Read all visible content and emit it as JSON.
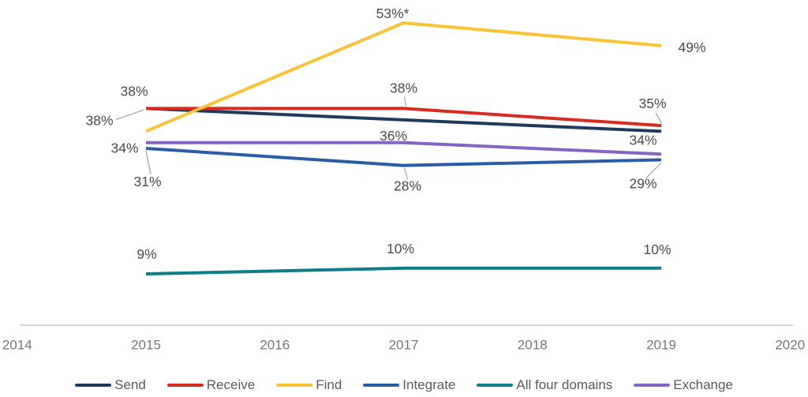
{
  "chart_data": {
    "type": "line",
    "title": "",
    "x": [
      2015,
      2017,
      2019
    ],
    "x_axis": {
      "range": [
        2014,
        2020
      ],
      "tick_labels": [
        "2014",
        "2015",
        "2016",
        "2017",
        "2018",
        "2019",
        "2020"
      ]
    },
    "y_axis": {
      "visible": false,
      "unit": "percent",
      "approx_range": [
        0,
        60
      ],
      "gridlines": false
    },
    "legend_position": "bottom",
    "colors": {
      "axis_line": "#c6c6c6",
      "leader_line": "#a9a9a9",
      "point_label_text": "#4a4a4a",
      "tick_label_text": "#757575",
      "legend_text": "#595959"
    },
    "series": [
      {
        "name": "Send",
        "color": "#1e3a5f",
        "values": [
          38,
          36,
          34
        ]
      },
      {
        "name": "Receive",
        "color": "#d92b21",
        "values": [
          38,
          38,
          35
        ]
      },
      {
        "name": "Find",
        "color": "#fcc237",
        "values": [
          34,
          53,
          49
        ]
      },
      {
        "name": "Integrate",
        "color": "#2a5da8",
        "values": [
          31,
          28,
          29
        ]
      },
      {
        "name": "All four domains",
        "color": "#117d8a",
        "values": [
          9,
          10,
          10
        ]
      },
      {
        "name": "Exchange",
        "color": "#8465c5",
        "values": [
          32,
          32,
          30
        ]
      }
    ],
    "point_labels": [
      {
        "series": "Receive",
        "year": 2015,
        "text": "38%",
        "leader": false
      },
      {
        "series": "Send",
        "year": 2015,
        "text": "38%",
        "leader": true
      },
      {
        "series": "Find",
        "year": 2015,
        "text": "34%",
        "leader": false
      },
      {
        "series": "Integrate",
        "year": 2015,
        "text": "31%",
        "leader": true
      },
      {
        "series": "All four domains",
        "year": 2015,
        "text": "9%",
        "leader": false
      },
      {
        "series": "Find",
        "year": 2017,
        "text": "53%*",
        "leader": false
      },
      {
        "series": "Receive",
        "year": 2017,
        "text": "38%",
        "leader": true
      },
      {
        "series": "Send",
        "year": 2017,
        "text": "36%",
        "leader": false
      },
      {
        "series": "Integrate",
        "year": 2017,
        "text": "28%",
        "leader": true
      },
      {
        "series": "All four domains",
        "year": 2017,
        "text": "10%",
        "leader": false
      },
      {
        "series": "Find",
        "year": 2019,
        "text": "49%",
        "leader": false
      },
      {
        "series": "Receive",
        "year": 2019,
        "text": "35%",
        "leader": true
      },
      {
        "series": "Send",
        "year": 2019,
        "text": "34%",
        "leader": false
      },
      {
        "series": "Integrate",
        "year": 2019,
        "text": "29%",
        "leader": true
      },
      {
        "series": "All four domains",
        "year": 2019,
        "text": "10%",
        "leader": false
      }
    ]
  }
}
